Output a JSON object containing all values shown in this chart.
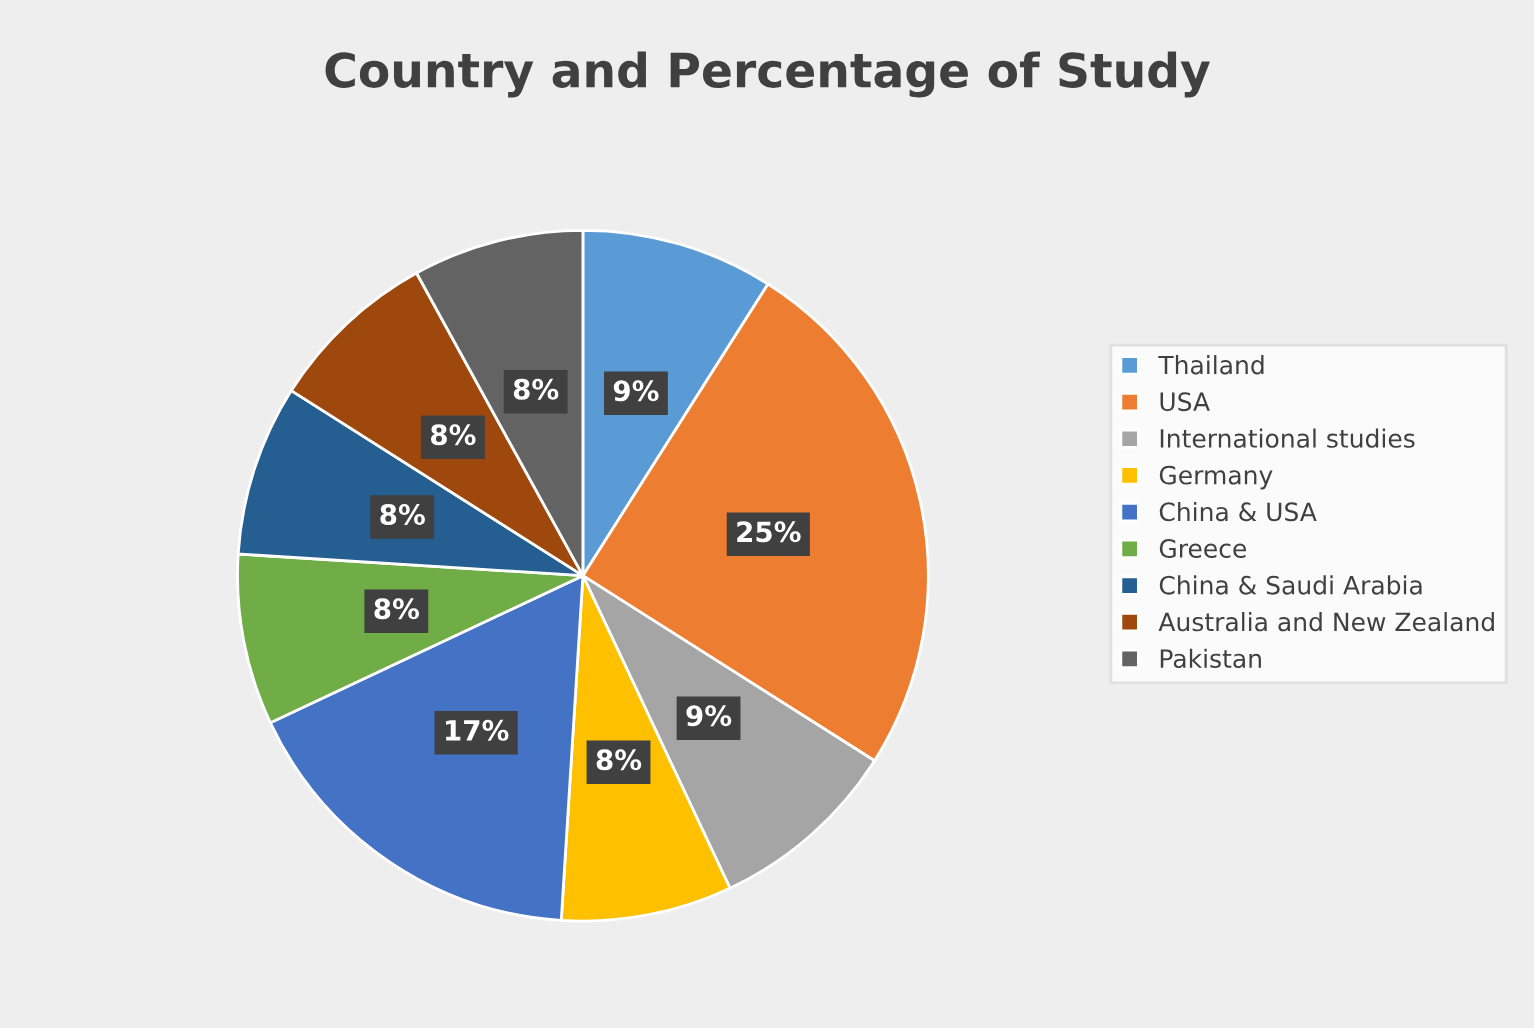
{
  "chart_data": {
    "type": "pie",
    "title": "Country and Percentage of Study",
    "categories": [
      "Thailand",
      "USA",
      "International studies",
      "Germany",
      "China & USA",
      "Greece",
      "China & Saudi Arabia",
      "Australia and New Zealand",
      "Pakistan"
    ],
    "values": [
      9,
      25,
      9,
      8,
      17,
      8,
      8,
      8,
      8
    ],
    "value_labels": [
      "9%",
      "25%",
      "9%",
      "8%",
      "17%",
      "8%",
      "8%",
      "8%",
      "8%"
    ],
    "colors": [
      "#5b9bd5",
      "#ed7d31",
      "#a5a5a5",
      "#ffc000",
      "#4472c4",
      "#70ad47",
      "#255e91",
      "#9e480e",
      "#636363"
    ],
    "legend": "right"
  }
}
